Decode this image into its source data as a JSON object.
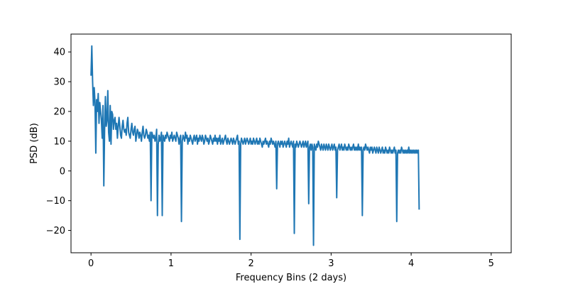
{
  "chart_data": {
    "type": "line",
    "title": "",
    "xlabel": "Frequency Bins (2 days)",
    "ylabel": "PSD (dB)",
    "xlim": [
      -0.25,
      5.25
    ],
    "ylim": [
      -27.5,
      46.0
    ],
    "xticks": [
      0,
      1,
      2,
      3,
      4,
      5
    ],
    "xtick_labels": [
      "0",
      "1",
      "2",
      "3",
      "4",
      "5"
    ],
    "yticks": [
      -20,
      -10,
      0,
      10,
      20,
      30,
      40
    ],
    "ytick_labels": [
      "−20",
      "−10",
      "0",
      "10",
      "20",
      "30",
      "40"
    ],
    "grid": false,
    "legend": "none",
    "series": [
      {
        "name": "PSD",
        "color": "#1f77b4",
        "x_start": 0.0,
        "x_step": 0.01,
        "values": [
          32,
          42,
          30,
          22,
          28,
          23,
          6,
          24,
          20,
          26,
          16,
          23,
          20,
          17,
          11,
          22,
          -5,
          14,
          25,
          15,
          17,
          27,
          13,
          10,
          22,
          9,
          20,
          19,
          14,
          17,
          18,
          14,
          16,
          11,
          15,
          18,
          15,
          12,
          11,
          15,
          17,
          14,
          13,
          14,
          12,
          16,
          18,
          13,
          12,
          11,
          14,
          16,
          13,
          12,
          14,
          15,
          10,
          12,
          14,
          13,
          11,
          13,
          12,
          10,
          13,
          15,
          12,
          11,
          12,
          14,
          13,
          11,
          12,
          10,
          13,
          -10,
          13,
          12,
          11,
          12,
          10,
          11,
          14,
          -15,
          9,
          12,
          10,
          11,
          13,
          -15,
          12,
          11,
          10,
          12,
          11,
          13,
          12,
          11,
          10,
          12,
          11,
          13,
          10,
          11,
          12,
          11,
          10,
          13,
          12,
          11,
          9,
          11,
          12,
          -17,
          10,
          12,
          11,
          10,
          13,
          11,
          12,
          9,
          11,
          10,
          12,
          11,
          10,
          9,
          11,
          12,
          10,
          11,
          12,
          9,
          11,
          10,
          12,
          11,
          10,
          12,
          11,
          9,
          10,
          12,
          11,
          10,
          11,
          9,
          10,
          12,
          11,
          10,
          9,
          11,
          10,
          12,
          10,
          11,
          9,
          11,
          10,
          12,
          9,
          10,
          11,
          9,
          10,
          11,
          12,
          10,
          9,
          11,
          10,
          9,
          10,
          11,
          10,
          9,
          11,
          10,
          9,
          10,
          11,
          12,
          9,
          10,
          -23,
          9,
          11,
          10,
          9,
          10,
          11,
          9,
          10,
          11,
          10,
          9,
          10,
          11,
          9,
          10,
          9,
          11,
          10,
          9,
          10,
          11,
          9,
          10,
          9,
          11,
          10,
          9,
          8,
          10,
          9,
          10,
          11,
          9,
          10,
          9,
          8,
          10,
          9,
          11,
          10,
          9,
          10,
          9,
          8,
          10,
          -6,
          9,
          10,
          9,
          8,
          10,
          9,
          10,
          8,
          9,
          10,
          9,
          8,
          10,
          9,
          11,
          8,
          9,
          10,
          9,
          8,
          10,
          -21,
          9,
          8,
          10,
          9,
          8,
          9,
          10,
          9,
          8,
          9,
          10,
          8,
          9,
          10,
          8,
          9,
          10,
          -11,
          8,
          9,
          7,
          9,
          8,
          -25,
          9,
          8,
          7,
          9,
          8,
          10,
          9,
          8,
          7,
          9,
          8,
          7,
          9,
          8,
          7,
          9,
          8,
          7,
          9,
          8,
          7,
          8,
          9,
          7,
          8,
          9,
          7,
          8,
          -9,
          7,
          8,
          9,
          7,
          8,
          9,
          7,
          8,
          7,
          9,
          8,
          7,
          8,
          7,
          9,
          8,
          7,
          8,
          7,
          8,
          9,
          7,
          8,
          7,
          8,
          7,
          9,
          7,
          8,
          7,
          8,
          -15,
          7,
          8,
          7,
          9,
          8,
          7,
          8,
          7,
          6,
          8,
          7,
          8,
          6,
          7,
          8,
          7,
          6,
          8,
          7,
          6,
          8,
          7,
          6,
          7,
          8,
          6,
          7,
          6,
          8,
          7,
          6,
          7,
          6,
          8,
          7,
          6,
          7,
          6,
          7,
          8,
          6,
          7,
          -17,
          6,
          7,
          6,
          7,
          6,
          8,
          7,
          6,
          7,
          6,
          7,
          6,
          7,
          6,
          8,
          6,
          7,
          6,
          7,
          6,
          7,
          6,
          7,
          6,
          7,
          6,
          7,
          -13
        ]
      }
    ]
  }
}
